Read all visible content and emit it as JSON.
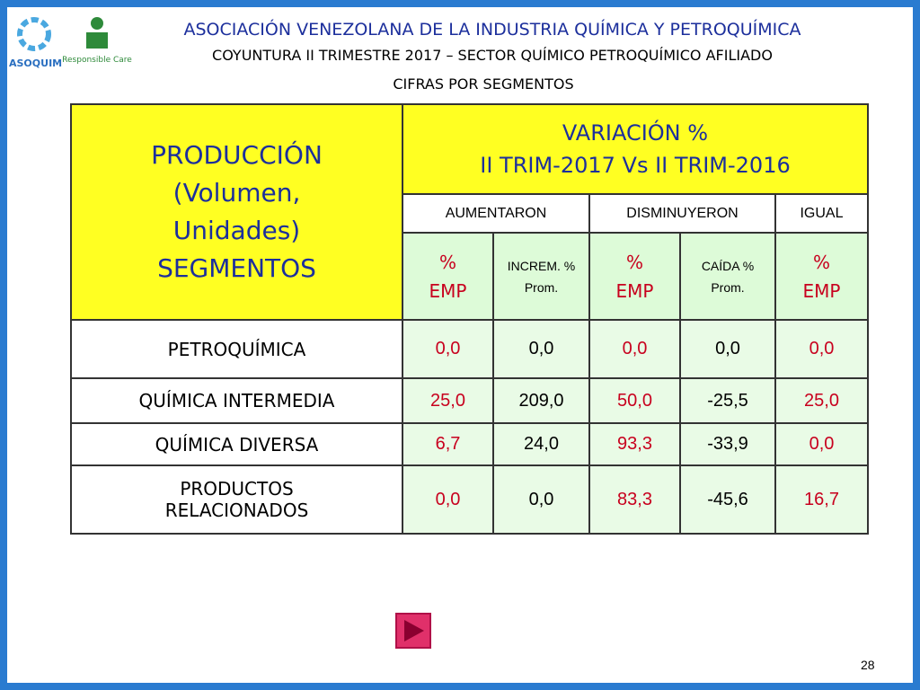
{
  "header": {
    "logo_left": "ASOQUIM",
    "logo_right": "Responsible Care",
    "title": "ASOCIACIÓN VENEZOLANA DE LA INDUSTRIA QUÍMICA Y PETROQUÍMICA",
    "subtitle": "COYUNTURA II TRIMESTRE 2017 – SECTOR QUÍMICO PETROQUÍMICO AFILIADO",
    "section": "CIFRAS POR SEGMENTOS"
  },
  "table": {
    "corner": [
      "PRODUCCIÓN",
      "(Volumen,",
      "Unidades)",
      "SEGMENTOS"
    ],
    "variation": [
      "VARIACIÓN %",
      "II TRIM-2017 Vs II TRIM-2016"
    ],
    "groups": [
      "AUMENTARON",
      "DISMINUYERON",
      "IGUAL"
    ],
    "subheaders": [
      [
        "%",
        "EMP"
      ],
      [
        "INCREM. %",
        "Prom."
      ],
      [
        "%",
        "EMP"
      ],
      [
        "CAÍDA %",
        "Prom."
      ],
      [
        "%",
        "EMP"
      ]
    ],
    "rows": [
      [
        "PETROQUÍMICA",
        "0,0",
        "0,0",
        "0,0",
        "0,0",
        "0,0"
      ],
      [
        "QUÍMICA INTERMEDIA",
        "25,0",
        "209,0",
        "50,0",
        "-25,5",
        "25,0"
      ],
      [
        "QUÍMICA DIVERSA",
        "6,7",
        "24,0",
        "93,3",
        "-33,9",
        "0,0"
      ],
      [
        [
          "PRODUCTOS",
          "RELACIONADOS"
        ],
        "0,0",
        "0,0",
        "83,3",
        "-45,6",
        "16,7"
      ]
    ]
  },
  "footer": {
    "page": "28"
  }
}
